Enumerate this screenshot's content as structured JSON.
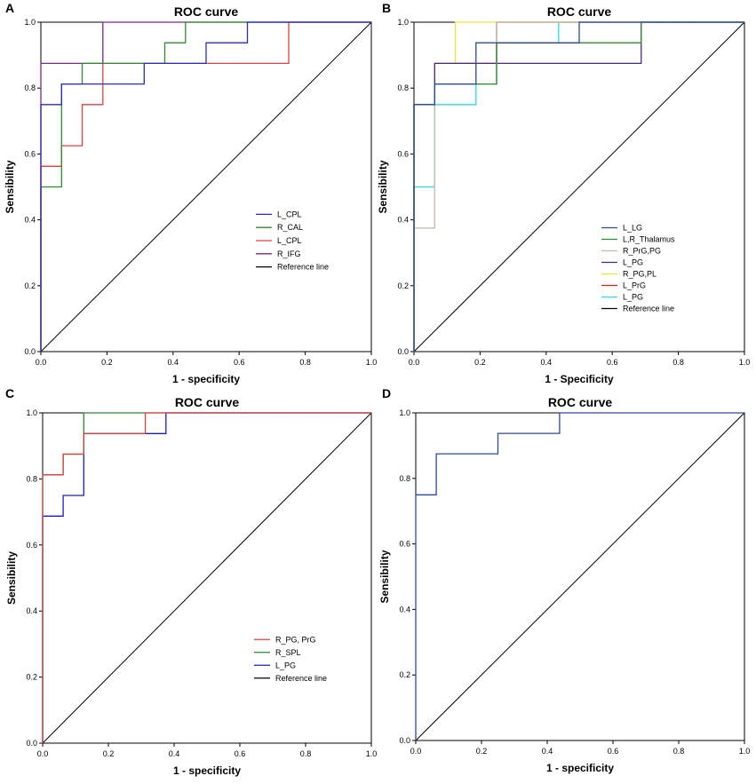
{
  "chart_data": [
    {
      "panel": "A",
      "type": "line",
      "title": "ROC curve",
      "xlabel": "1 - specificity",
      "ylabel": "Sensibility",
      "xlim": [
        0,
        1
      ],
      "ylim": [
        0,
        1
      ],
      "xticks": [
        "0.0",
        "0.2",
        "0.4",
        "0.6",
        "0.8",
        "1.0"
      ],
      "yticks": [
        "0.0",
        "0.2",
        "0.4",
        "0.6",
        "0.8",
        "1.0"
      ],
      "legend_position": "center-right",
      "series": [
        {
          "name": "L_CPL",
          "color": "#2b2bc8",
          "x": [
            0,
            0,
            0.0625,
            0.0625,
            0.3125,
            0.3125,
            0.5,
            0.5,
            0.625,
            0.625,
            1
          ],
          "y": [
            0,
            0.75,
            0.75,
            0.8125,
            0.8125,
            0.875,
            0.875,
            0.9375,
            0.9375,
            1,
            1
          ]
        },
        {
          "name": "R_CAL",
          "color": "#2e8b2e",
          "x": [
            0,
            0,
            0.0625,
            0.0625,
            0.125,
            0.125,
            0.375,
            0.375,
            0.4375,
            0.4375,
            1
          ],
          "y": [
            0,
            0.5,
            0.5,
            0.8125,
            0.8125,
            0.875,
            0.875,
            0.9375,
            0.9375,
            1,
            1
          ]
        },
        {
          "name": "L_CPL",
          "color": "#e04040",
          "x": [
            0,
            0,
            0.0625,
            0.0625,
            0.125,
            0.125,
            0.1875,
            0.1875,
            0.75,
            0.75,
            1
          ],
          "y": [
            0,
            0.5625,
            0.5625,
            0.625,
            0.625,
            0.75,
            0.75,
            0.875,
            0.875,
            1,
            1
          ]
        },
        {
          "name": "R_IFG",
          "color": "#7a2a8a",
          "x": [
            0,
            0,
            0.1875,
            0.1875,
            1
          ],
          "y": [
            0,
            0.875,
            0.875,
            1,
            1
          ]
        },
        {
          "name": "Reference line",
          "color": "#000000",
          "x": [
            0,
            1
          ],
          "y": [
            0,
            1
          ]
        }
      ]
    },
    {
      "panel": "B",
      "type": "line",
      "title": "ROC curve",
      "xlabel": "1 - Specificity",
      "ylabel": "Sensibility",
      "xlim": [
        0,
        1
      ],
      "ylim": [
        0,
        1
      ],
      "xticks": [
        "0.0",
        "0.2",
        "0.4",
        "0.6",
        "0.8",
        "1.0"
      ],
      "yticks": [
        "0.0",
        "0.2",
        "0.4",
        "0.6",
        "0.8",
        "1.0"
      ],
      "legend_position": "center-right",
      "series": [
        {
          "name": "L_LG",
          "color": "#2b4aa0",
          "x": [
            0,
            0,
            0.0625,
            0.0625,
            0.1875,
            0.1875,
            0.5,
            0.5,
            1
          ],
          "y": [
            0,
            0.75,
            0.75,
            0.8125,
            0.8125,
            0.9375,
            0.9375,
            1,
            1
          ]
        },
        {
          "name": "L,R_Thalamus",
          "color": "#2e8b2e",
          "x": [
            0,
            0,
            0.0625,
            0.0625,
            0.25,
            0.25,
            0.6875,
            0.6875,
            1
          ],
          "y": [
            0,
            0.75,
            0.75,
            0.8125,
            0.8125,
            0.9375,
            0.9375,
            1,
            1
          ]
        },
        {
          "name": "R_PrG,PG",
          "color": "#c0bca8",
          "x": [
            0,
            0,
            0.0625,
            0.0625,
            0.25,
            0.25,
            1
          ],
          "y": [
            0,
            0.375,
            0.375,
            0.8125,
            0.8125,
            1,
            1
          ]
        },
        {
          "name": "L_PG",
          "color": "#4a2a80",
          "x": [
            0,
            0,
            0.0625,
            0.0625,
            0.6875,
            0.6875,
            1
          ],
          "y": [
            0,
            0.75,
            0.75,
            0.875,
            0.875,
            1,
            1
          ]
        },
        {
          "name": "R_PG,PL",
          "color": "#f0e040",
          "x": [
            0,
            0,
            0.0625,
            0.0625,
            0.125,
            0.125,
            1
          ],
          "y": [
            0,
            0.75,
            0.75,
            0.875,
            0.875,
            1,
            1
          ]
        },
        {
          "name": "L_PrG",
          "color": "#e02020",
          "x": [
            0,
            0,
            0.0625,
            0.0625,
            0.25,
            0.25,
            1
          ],
          "y": [
            0,
            0.75,
            0.75,
            0.875,
            0.875,
            1,
            1
          ]
        },
        {
          "name": "L_PG",
          "color": "#30d8e0",
          "x": [
            0,
            0,
            0.0625,
            0.0625,
            0.1875,
            0.1875,
            0.25,
            0.25,
            0.4375,
            0.4375,
            1
          ],
          "y": [
            0,
            0.5,
            0.5,
            0.75,
            0.75,
            0.8125,
            0.8125,
            0.9375,
            0.9375,
            1,
            1
          ]
        },
        {
          "name": "Reference line",
          "color": "#000000",
          "x": [
            0,
            1
          ],
          "y": [
            0,
            1
          ]
        }
      ]
    },
    {
      "panel": "C",
      "type": "line",
      "title": "ROC curve",
      "xlabel": "1 - specificity",
      "ylabel": "Sensibility",
      "xlim": [
        0,
        1
      ],
      "ylim": [
        0,
        1
      ],
      "xticks": [
        "0.0",
        "0.2",
        "0.4",
        "0.6",
        "0.8",
        "1.0"
      ],
      "yticks": [
        "0.0",
        "0.2",
        "0.4",
        "0.6",
        "0.8",
        "1.0"
      ],
      "legend_position": "center-right",
      "series": [
        {
          "name": "R_PG, PrG",
          "color": "#e04040",
          "x": [
            0,
            0,
            0.0625,
            0.0625,
            0.125,
            0.125,
            0.1875,
            0.1875,
            0.3125,
            0.3125,
            1
          ],
          "y": [
            0,
            0.8125,
            0.8125,
            0.875,
            0.875,
            0.9375,
            0.9375,
            0.9375,
            0.9375,
            1,
            1
          ]
        },
        {
          "name": "R_SPL",
          "color": "#2e8b2e",
          "x": [
            0,
            0,
            0.0625,
            0.0625,
            0.125,
            0.125,
            1
          ],
          "y": [
            0,
            0.8125,
            0.8125,
            0.875,
            0.875,
            1,
            1
          ]
        },
        {
          "name": "L_PG",
          "color": "#1a1ad0",
          "x": [
            0,
            0,
            0.0625,
            0.0625,
            0.125,
            0.125,
            0.375,
            0.375,
            1
          ],
          "y": [
            0,
            0.6875,
            0.6875,
            0.75,
            0.75,
            0.9375,
            0.9375,
            1,
            1
          ]
        },
        {
          "name": "Reference line",
          "color": "#000000",
          "x": [
            0,
            1
          ],
          "y": [
            0,
            1
          ]
        }
      ]
    },
    {
      "panel": "D",
      "type": "line",
      "title": "ROC curve",
      "xlabel": "1 - specificity",
      "ylabel": "Sensibility",
      "xlim": [
        0,
        1
      ],
      "ylim": [
        0,
        1
      ],
      "xticks": [
        "0.0",
        "0.2",
        "0.4",
        "0.6",
        "0.8",
        "1.0"
      ],
      "yticks": [
        "0.0",
        "0.2",
        "0.4",
        "0.6",
        "0.8",
        "1.0"
      ],
      "legend_position": "none",
      "series": [
        {
          "name": "",
          "color": "#2b4aa0",
          "x": [
            0,
            0,
            0.0625,
            0.0625,
            0.25,
            0.25,
            0.4375,
            0.4375,
            1
          ],
          "y": [
            0,
            0.75,
            0.75,
            0.875,
            0.875,
            0.9375,
            0.9375,
            1,
            1
          ]
        },
        {
          "name": "",
          "color": "#000000",
          "x": [
            0,
            1
          ],
          "y": [
            0,
            1
          ]
        }
      ]
    }
  ]
}
